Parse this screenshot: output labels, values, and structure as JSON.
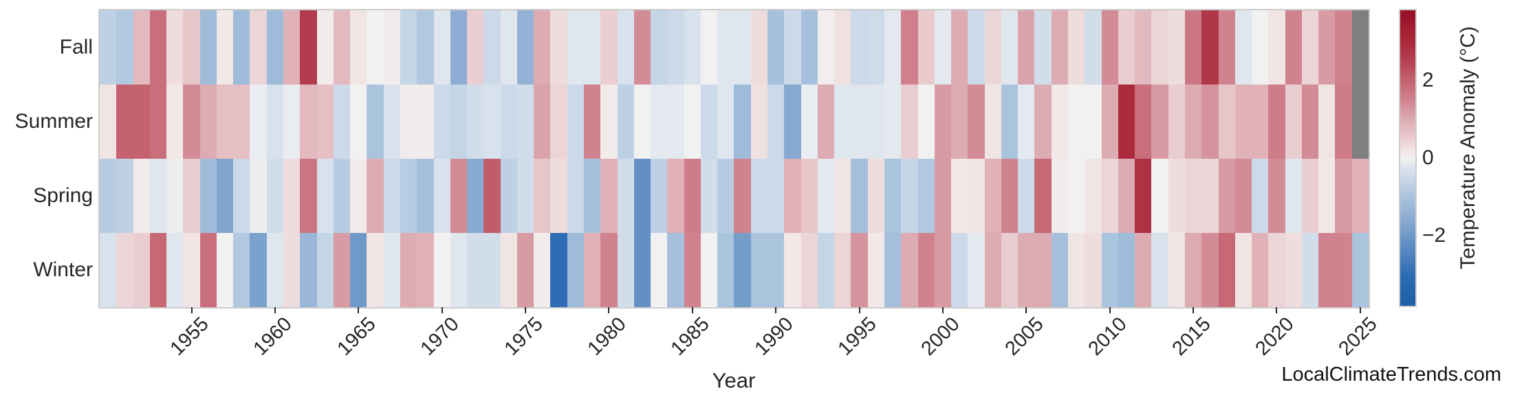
{
  "figure": {
    "xlabel": "Year",
    "watermark": "LocalClimateTrends.com"
  },
  "chart_data": {
    "type": "heatmap",
    "xlabel": "Year",
    "colorbar_label": "Temperature Anomaly (°C)",
    "row_categories": [
      "Fall",
      "Summer",
      "Spring",
      "Winter"
    ],
    "years": [
      1950,
      1951,
      1952,
      1953,
      1954,
      1955,
      1956,
      1957,
      1958,
      1959,
      1960,
      1961,
      1962,
      1963,
      1964,
      1965,
      1966,
      1967,
      1968,
      1969,
      1970,
      1971,
      1972,
      1973,
      1974,
      1975,
      1976,
      1977,
      1978,
      1979,
      1980,
      1981,
      1982,
      1983,
      1984,
      1985,
      1986,
      1987,
      1988,
      1989,
      1990,
      1991,
      1992,
      1993,
      1994,
      1995,
      1996,
      1997,
      1998,
      1999,
      2000,
      2001,
      2002,
      2003,
      2004,
      2005,
      2006,
      2007,
      2008,
      2009,
      2010,
      2011,
      2012,
      2013,
      2014,
      2015,
      2016,
      2017,
      2018,
      2019,
      2020,
      2021,
      2022,
      2023,
      2024,
      2025
    ],
    "series": [
      {
        "name": "Fall",
        "values": [
          -0.7,
          -0.9,
          0.8,
          1.8,
          0.3,
          0.6,
          -1.2,
          0.15,
          -1.2,
          0.4,
          -1.2,
          0.9,
          2.6,
          0.1,
          0.8,
          0.2,
          0,
          0.1,
          -0.6,
          -0.9,
          -0.2,
          -1.5,
          0.5,
          -0.5,
          -0.2,
          -1.4,
          1,
          0.3,
          -0.2,
          -0.2,
          0.5,
          -0.3,
          1.4,
          -0.6,
          -0.5,
          -0.3,
          0,
          -0.2,
          -0.2,
          0.3,
          -1.1,
          -0.5,
          -1.1,
          0.05,
          0.25,
          -0.5,
          -0.45,
          -0.15,
          1.55,
          0.55,
          -0.15,
          1,
          -0.5,
          0.4,
          -0.2,
          1.1,
          -0.4,
          1,
          0.3,
          -0.4,
          1.4,
          0.5,
          0.8,
          0.4,
          0.3,
          1.7,
          2.7,
          1.5,
          -0.2,
          0,
          0.2,
          1.5,
          0.4,
          1.2,
          1.5,
          null
        ]
      },
      {
        "name": "Summer",
        "values": [
          0.2,
          2,
          2,
          1.8,
          0.15,
          1.4,
          1,
          0.7,
          0.7,
          -0.1,
          -0.3,
          -0.1,
          0.8,
          0.7,
          -0.5,
          0,
          -1,
          -0.3,
          0.1,
          0.1,
          -0.5,
          -0.6,
          -0.4,
          -0.3,
          -0.5,
          -0.4,
          1.1,
          0.4,
          -0.5,
          1.5,
          0.1,
          -0.7,
          0,
          -0.15,
          -0.15,
          0,
          -0.5,
          -0.2,
          -1.2,
          0.25,
          -0.5,
          -1.6,
          -0.1,
          1,
          -0.2,
          -0.2,
          -0.2,
          -0.15,
          0.5,
          0,
          1.2,
          1,
          1.4,
          0.2,
          -1,
          -0.15,
          1,
          0.15,
          0,
          0,
          1,
          2.9,
          1.8,
          1.2,
          0.5,
          1,
          1.3,
          0.6,
          0.9,
          0.9,
          1.6,
          0.5,
          1.4,
          0.2,
          1.6,
          null
        ]
      },
      {
        "name": "Spring",
        "values": [
          -0.8,
          -0.7,
          0.1,
          -0.2,
          -0.05,
          0.5,
          -1.2,
          -1.7,
          -0.5,
          -0.05,
          -0.4,
          0.3,
          1.7,
          -0.3,
          -0.8,
          0.1,
          1,
          -0.5,
          -0.8,
          -1.1,
          -0.3,
          1.4,
          -1.6,
          2.1,
          -0.7,
          -0.4,
          0.6,
          0.3,
          -0.5,
          -1.1,
          0.9,
          -0.4,
          -2.2,
          -0.7,
          0.9,
          1.6,
          -0.4,
          -0.8,
          1.5,
          -0.5,
          -0.5,
          0.9,
          0.6,
          -0.15,
          0.2,
          -1.1,
          0.3,
          -1,
          -0.6,
          -0.9,
          1.2,
          0.15,
          0.2,
          0.9,
          1.5,
          -0.5,
          1.9,
          0.1,
          0,
          0.2,
          0.4,
          1,
          2.8,
          0,
          0.3,
          0.4,
          0.4,
          1.2,
          1.4,
          -0.5,
          1.4,
          -0.2,
          0.5,
          0.15,
          1.2,
          0.9
        ]
      },
      {
        "name": "Winter",
        "values": [
          -0.3,
          0.4,
          0.5,
          1.9,
          -0.2,
          0.2,
          1.8,
          0,
          -0.9,
          -1.8,
          -0.2,
          0.3,
          -1.3,
          -0.6,
          1.2,
          -2,
          0.2,
          -0.2,
          1,
          0.9,
          0,
          -0.2,
          -0.4,
          -0.4,
          0.2,
          1.2,
          0.1,
          -3,
          -1.2,
          0.9,
          1.5,
          -0.4,
          -2.2,
          0,
          -1.1,
          1.5,
          0,
          -1,
          -1.9,
          -1,
          -1,
          0.15,
          0.4,
          -0.6,
          0.4,
          1.3,
          0.15,
          -1.1,
          1,
          1.5,
          1.2,
          -0.5,
          -0.15,
          1,
          0.5,
          1,
          1,
          -1.1,
          0.2,
          0.3,
          -1,
          -1.2,
          1,
          -0.3,
          0.2,
          1,
          1.4,
          1.9,
          0.2,
          0.9,
          0.4,
          0.3,
          -0.4,
          1.5,
          1.5,
          -1
        ]
      }
    ],
    "x_tick_years": [
      1955,
      1960,
      1965,
      1970,
      1975,
      1980,
      1985,
      1990,
      1995,
      2000,
      2005,
      2010,
      2015,
      2020,
      2025
    ],
    "colorbar_ticks": [
      {
        "label": "2",
        "value": 2
      },
      {
        "label": "0",
        "value": 0
      },
      {
        "label": "−2",
        "value": -2
      }
    ],
    "vmin": -3.8,
    "vmax": 3.8,
    "colormap_stops": [
      [
        -3.8,
        "#1e5fa7"
      ],
      [
        -3.0,
        "#2e6cb3"
      ],
      [
        -2.5,
        "#4f82bd"
      ],
      [
        -2.0,
        "#6e99c8"
      ],
      [
        -1.5,
        "#8fadd4"
      ],
      [
        -1.0,
        "#aac4de"
      ],
      [
        -0.5,
        "#cbd9e8"
      ],
      [
        -0.2,
        "#dfe6ee"
      ],
      [
        0.0,
        "#f2f1f1"
      ],
      [
        0.2,
        "#f1e5e4"
      ],
      [
        0.5,
        "#eacdd0"
      ],
      [
        1.0,
        "#ddabb2"
      ],
      [
        1.5,
        "#d0838f"
      ],
      [
        2.0,
        "#c4626f"
      ],
      [
        2.6,
        "#b23c4d"
      ],
      [
        3.0,
        "#aa2739"
      ],
      [
        3.8,
        "#971026"
      ]
    ],
    "missing_color": "#7f7f7f",
    "frame_color": "#cccccc",
    "text_color": "#262626"
  }
}
